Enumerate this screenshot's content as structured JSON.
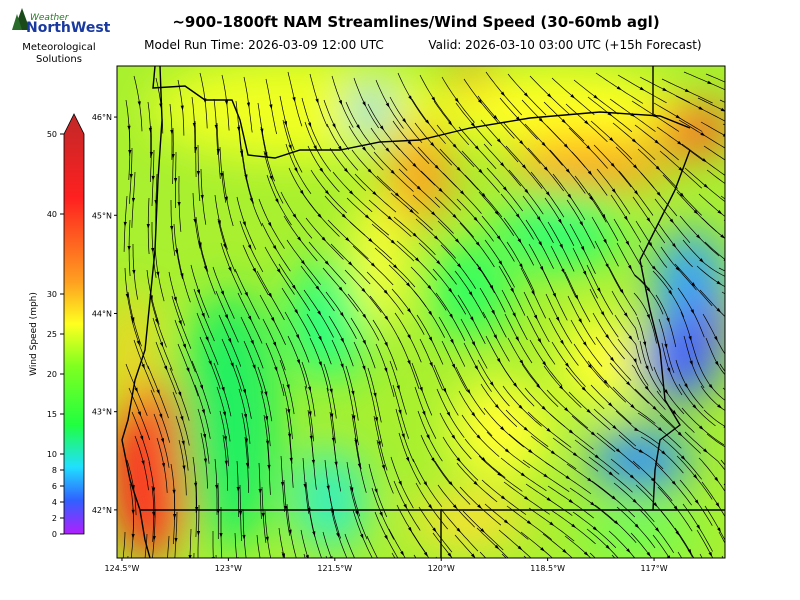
{
  "header": {
    "logo_top": "Weather",
    "logo_main": "NorthWest",
    "logo_sub": "Meteorological Solutions",
    "title": "~900-1800ft NAM Streamlines/Wind Speed (30-60mb agl)",
    "model_run": "Model Run Time: 2026-03-09 12:00 UTC",
    "valid": "Valid: 2026-03-10 03:00 UTC  (+15h Forecast)"
  },
  "colorbar": {
    "label": "Wind Speed (mph)",
    "lim": [
      0,
      50
    ],
    "ticks": [
      0,
      2,
      4,
      6,
      8,
      10,
      15,
      20,
      25,
      30,
      40,
      50
    ]
  },
  "map": {
    "lonlim": [
      -124.57,
      -116.0
    ],
    "latlim": [
      41.51,
      46.52
    ],
    "lat_ticks": [
      {
        "value": 46,
        "label": "46°N"
      },
      {
        "value": 45,
        "label": "45°N"
      },
      {
        "value": 44,
        "label": "44°N"
      },
      {
        "value": 43,
        "label": "43°N"
      },
      {
        "value": 42,
        "label": "42°N"
      }
    ],
    "lon_ticks": [
      {
        "value": -124.5,
        "label": "124.5°W"
      },
      {
        "value": -123,
        "label": "123°W"
      },
      {
        "value": -121.5,
        "label": "121.5°W"
      },
      {
        "value": -120,
        "label": "120°W"
      },
      {
        "value": -118.5,
        "label": "118.5°W"
      },
      {
        "value": -117,
        "label": "117°W"
      }
    ]
  }
}
